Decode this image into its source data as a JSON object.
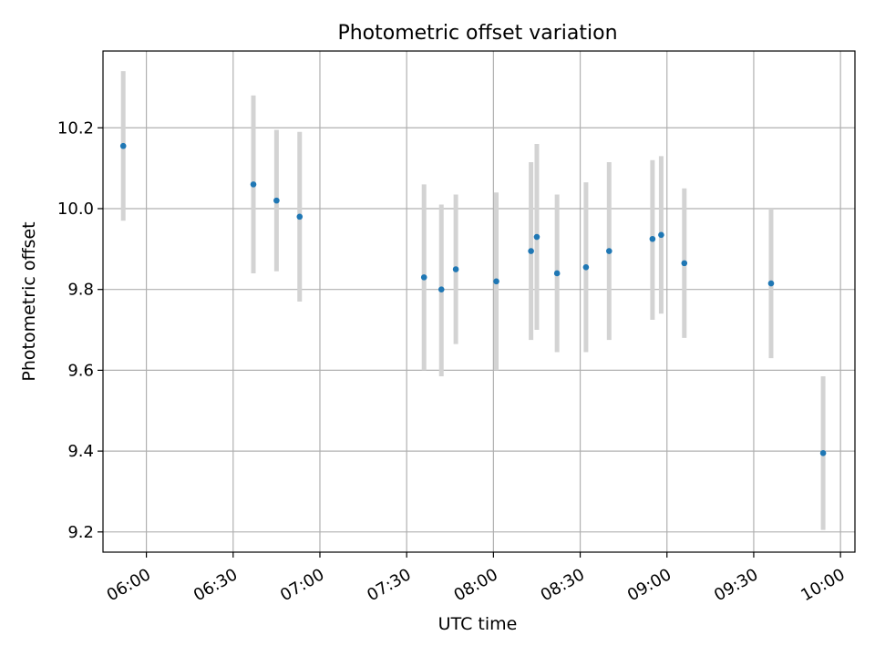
{
  "chart_data": {
    "type": "scatter",
    "title": "Photometric offset variation",
    "xlabel": "UTC time",
    "ylabel": "Photometric offset",
    "xlim": [
      "05:45",
      "10:05"
    ],
    "ylim": [
      9.15,
      10.39
    ],
    "grid": true,
    "x_ticks": [
      "06:00",
      "06:30",
      "07:00",
      "07:30",
      "08:00",
      "08:30",
      "09:00",
      "09:30",
      "10:00"
    ],
    "y_ticks": [
      "9.2",
      "9.4",
      "9.6",
      "9.8",
      "10.0",
      "10.2"
    ],
    "colors": {
      "point": "#1f77b4",
      "errorbar": "#d3d3d3",
      "grid": "#b0b0b0"
    },
    "points": [
      {
        "x": "05:52",
        "y": 10.155,
        "lo": 9.97,
        "hi": 10.34
      },
      {
        "x": "06:37",
        "y": 10.06,
        "lo": 9.84,
        "hi": 10.28
      },
      {
        "x": "06:45",
        "y": 10.02,
        "lo": 9.845,
        "hi": 10.195
      },
      {
        "x": "06:53",
        "y": 9.98,
        "lo": 9.77,
        "hi": 10.19
      },
      {
        "x": "07:36",
        "y": 9.83,
        "lo": 9.6,
        "hi": 10.06
      },
      {
        "x": "07:42",
        "y": 9.8,
        "lo": 9.585,
        "hi": 10.01
      },
      {
        "x": "07:47",
        "y": 9.85,
        "lo": 9.665,
        "hi": 10.035
      },
      {
        "x": "08:01",
        "y": 9.82,
        "lo": 9.6,
        "hi": 10.04
      },
      {
        "x": "08:13",
        "y": 9.895,
        "lo": 9.675,
        "hi": 10.115
      },
      {
        "x": "08:15",
        "y": 9.93,
        "lo": 9.7,
        "hi": 10.16
      },
      {
        "x": "08:22",
        "y": 9.84,
        "lo": 9.645,
        "hi": 10.035
      },
      {
        "x": "08:32",
        "y": 9.855,
        "lo": 9.645,
        "hi": 10.065
      },
      {
        "x": "08:40",
        "y": 9.895,
        "lo": 9.675,
        "hi": 10.115
      },
      {
        "x": "08:55",
        "y": 9.925,
        "lo": 9.725,
        "hi": 10.12
      },
      {
        "x": "08:58",
        "y": 9.935,
        "lo": 9.74,
        "hi": 10.13
      },
      {
        "x": "09:06",
        "y": 9.865,
        "lo": 9.68,
        "hi": 10.05
      },
      {
        "x": "09:36",
        "y": 9.815,
        "lo": 9.63,
        "hi": 10.0
      },
      {
        "x": "09:54",
        "y": 9.395,
        "lo": 9.205,
        "hi": 9.585
      }
    ]
  }
}
